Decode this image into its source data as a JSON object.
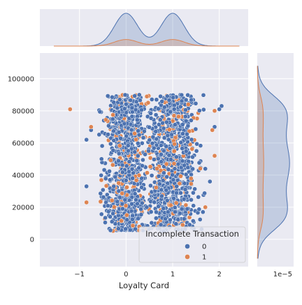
{
  "chart_data": {
    "type": "scatter",
    "subtype": "jointplot",
    "title": "",
    "xlabel": "Loyalty Card",
    "ylabel": "",
    "xlim": [
      -1.85,
      2.62
    ],
    "ylim": [
      -17000,
      116000
    ],
    "x_ticks": [
      -1,
      0,
      1,
      2
    ],
    "x_tick_labels": [
      "−1",
      "0",
      "1",
      "2"
    ],
    "y_ticks": [
      0,
      20000,
      40000,
      60000,
      80000,
      100000
    ],
    "y_tick_labels": [
      "0",
      "20000",
      "40000",
      "60000",
      "80000",
      "100000"
    ],
    "marginal_y_offset_label": "1e−5",
    "grid": true,
    "legend": {
      "title": "Incomplete Transaction",
      "placement": "lower-right",
      "entries": [
        {
          "label": "0",
          "color": "#4c72b0"
        },
        {
          "label": "1",
          "color": "#dd8452"
        }
      ]
    },
    "series": [
      {
        "name": "0",
        "color": "#4c72b0",
        "x_distribution": "two clusters near 0 and 1, spread -0.6 to 1.7",
        "y_range": [
          5000,
          90000
        ],
        "outliers": [
          [
            -0.85,
            62000
          ],
          [
            -0.75,
            68000
          ],
          [
            -0.85,
            33000
          ],
          [
            1.9,
            70000
          ],
          [
            2.0,
            81000
          ],
          [
            2.05,
            83000
          ],
          [
            1.8,
            36000
          ],
          [
            1.65,
            17000
          ]
        ],
        "sample_count": 1500
      },
      {
        "name": "1",
        "color": "#dd8452",
        "x_distribution": "two clusters near 0 and 1, spread -0.6 to 1.7",
        "y_range": [
          5000,
          90000
        ],
        "outliers": [
          [
            -1.2,
            81000
          ],
          [
            -0.85,
            23000
          ],
          [
            -0.75,
            70000
          ],
          [
            1.9,
            80000
          ],
          [
            1.85,
            68000
          ],
          [
            1.9,
            52000
          ],
          [
            1.7,
            20000
          ]
        ],
        "sample_count": 300
      }
    ],
    "marginal_x": {
      "series_0_components": [
        {
          "mean": 0.0,
          "sd": 0.25,
          "weight": 0.5
        },
        {
          "mean": 1.0,
          "sd": 0.25,
          "weight": 0.5
        }
      ],
      "series_1_share": 0.2
    },
    "marginal_y": {
      "series_0_y_range": [
        5000,
        90000
      ],
      "series_1_share": 0.2
    }
  }
}
